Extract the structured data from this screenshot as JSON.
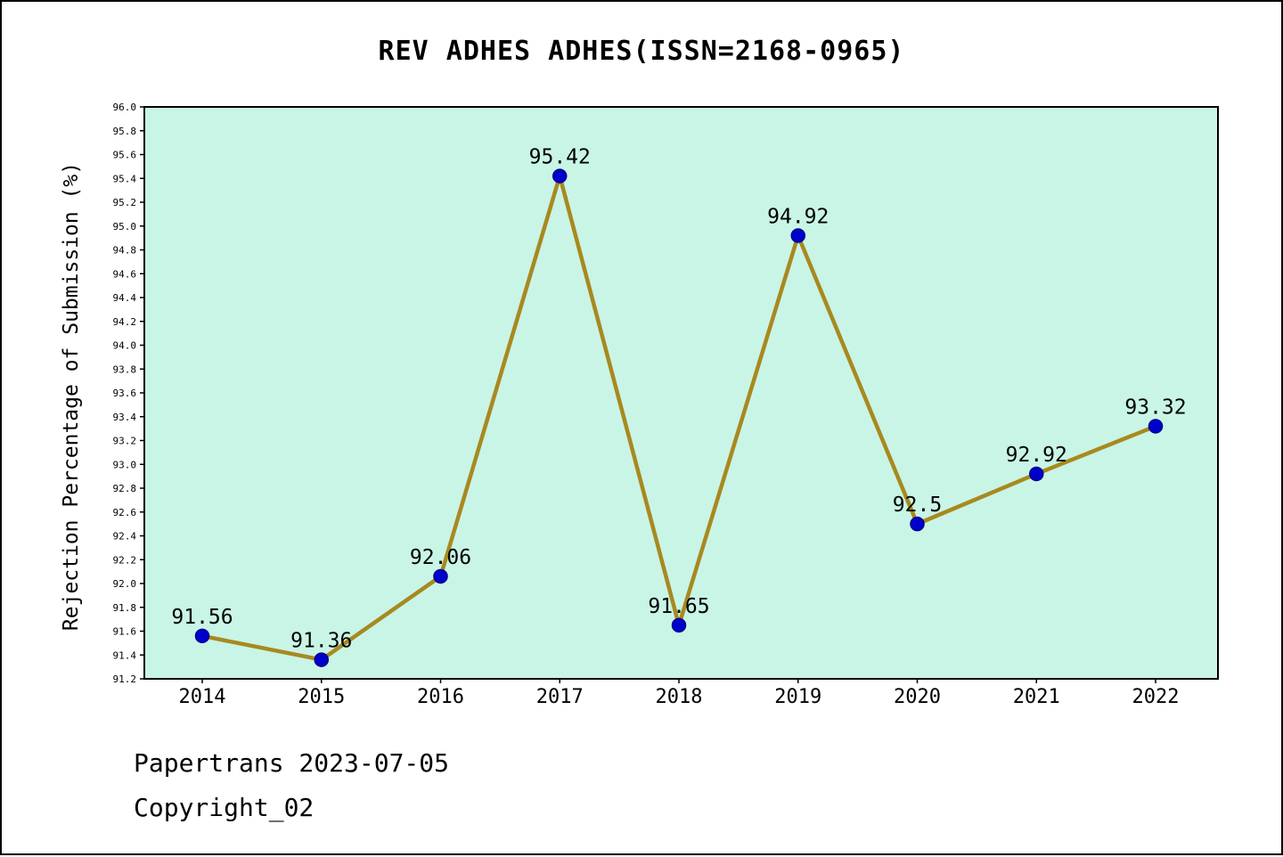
{
  "title": "REV ADHES ADHES(ISSN=2168-0965)",
  "y_axis_title": "Rejection Percentage of Submission (%)",
  "footer": {
    "line1": "Papertrans 2023-07-05",
    "line2": "Copyright_02"
  },
  "chart_data": {
    "type": "line",
    "title": "REV ADHES ADHES(ISSN=2168-0965)",
    "xlabel": "",
    "ylabel": "Rejection Percentage of Submission (%)",
    "categories": [
      "2014",
      "2015",
      "2016",
      "2017",
      "2018",
      "2019",
      "2020",
      "2021",
      "2022"
    ],
    "values": [
      91.56,
      91.36,
      92.06,
      95.42,
      91.65,
      94.92,
      92.5,
      92.92,
      93.32
    ],
    "data_labels": [
      "91.56",
      "91.36",
      "92.06",
      "95.42",
      "91.65",
      "94.92",
      "92.5",
      "92.92",
      "93.32"
    ],
    "ylim": [
      91.2,
      96.0
    ],
    "ytick_step": 0.2,
    "grid": false,
    "legend": "none",
    "colors": {
      "plot_background": "#c9f5e6",
      "line": "#a8891f",
      "marker_fill": "#0000cd",
      "marker_edge": "#00008b",
      "axis": "#000000",
      "text": "#000000"
    }
  }
}
